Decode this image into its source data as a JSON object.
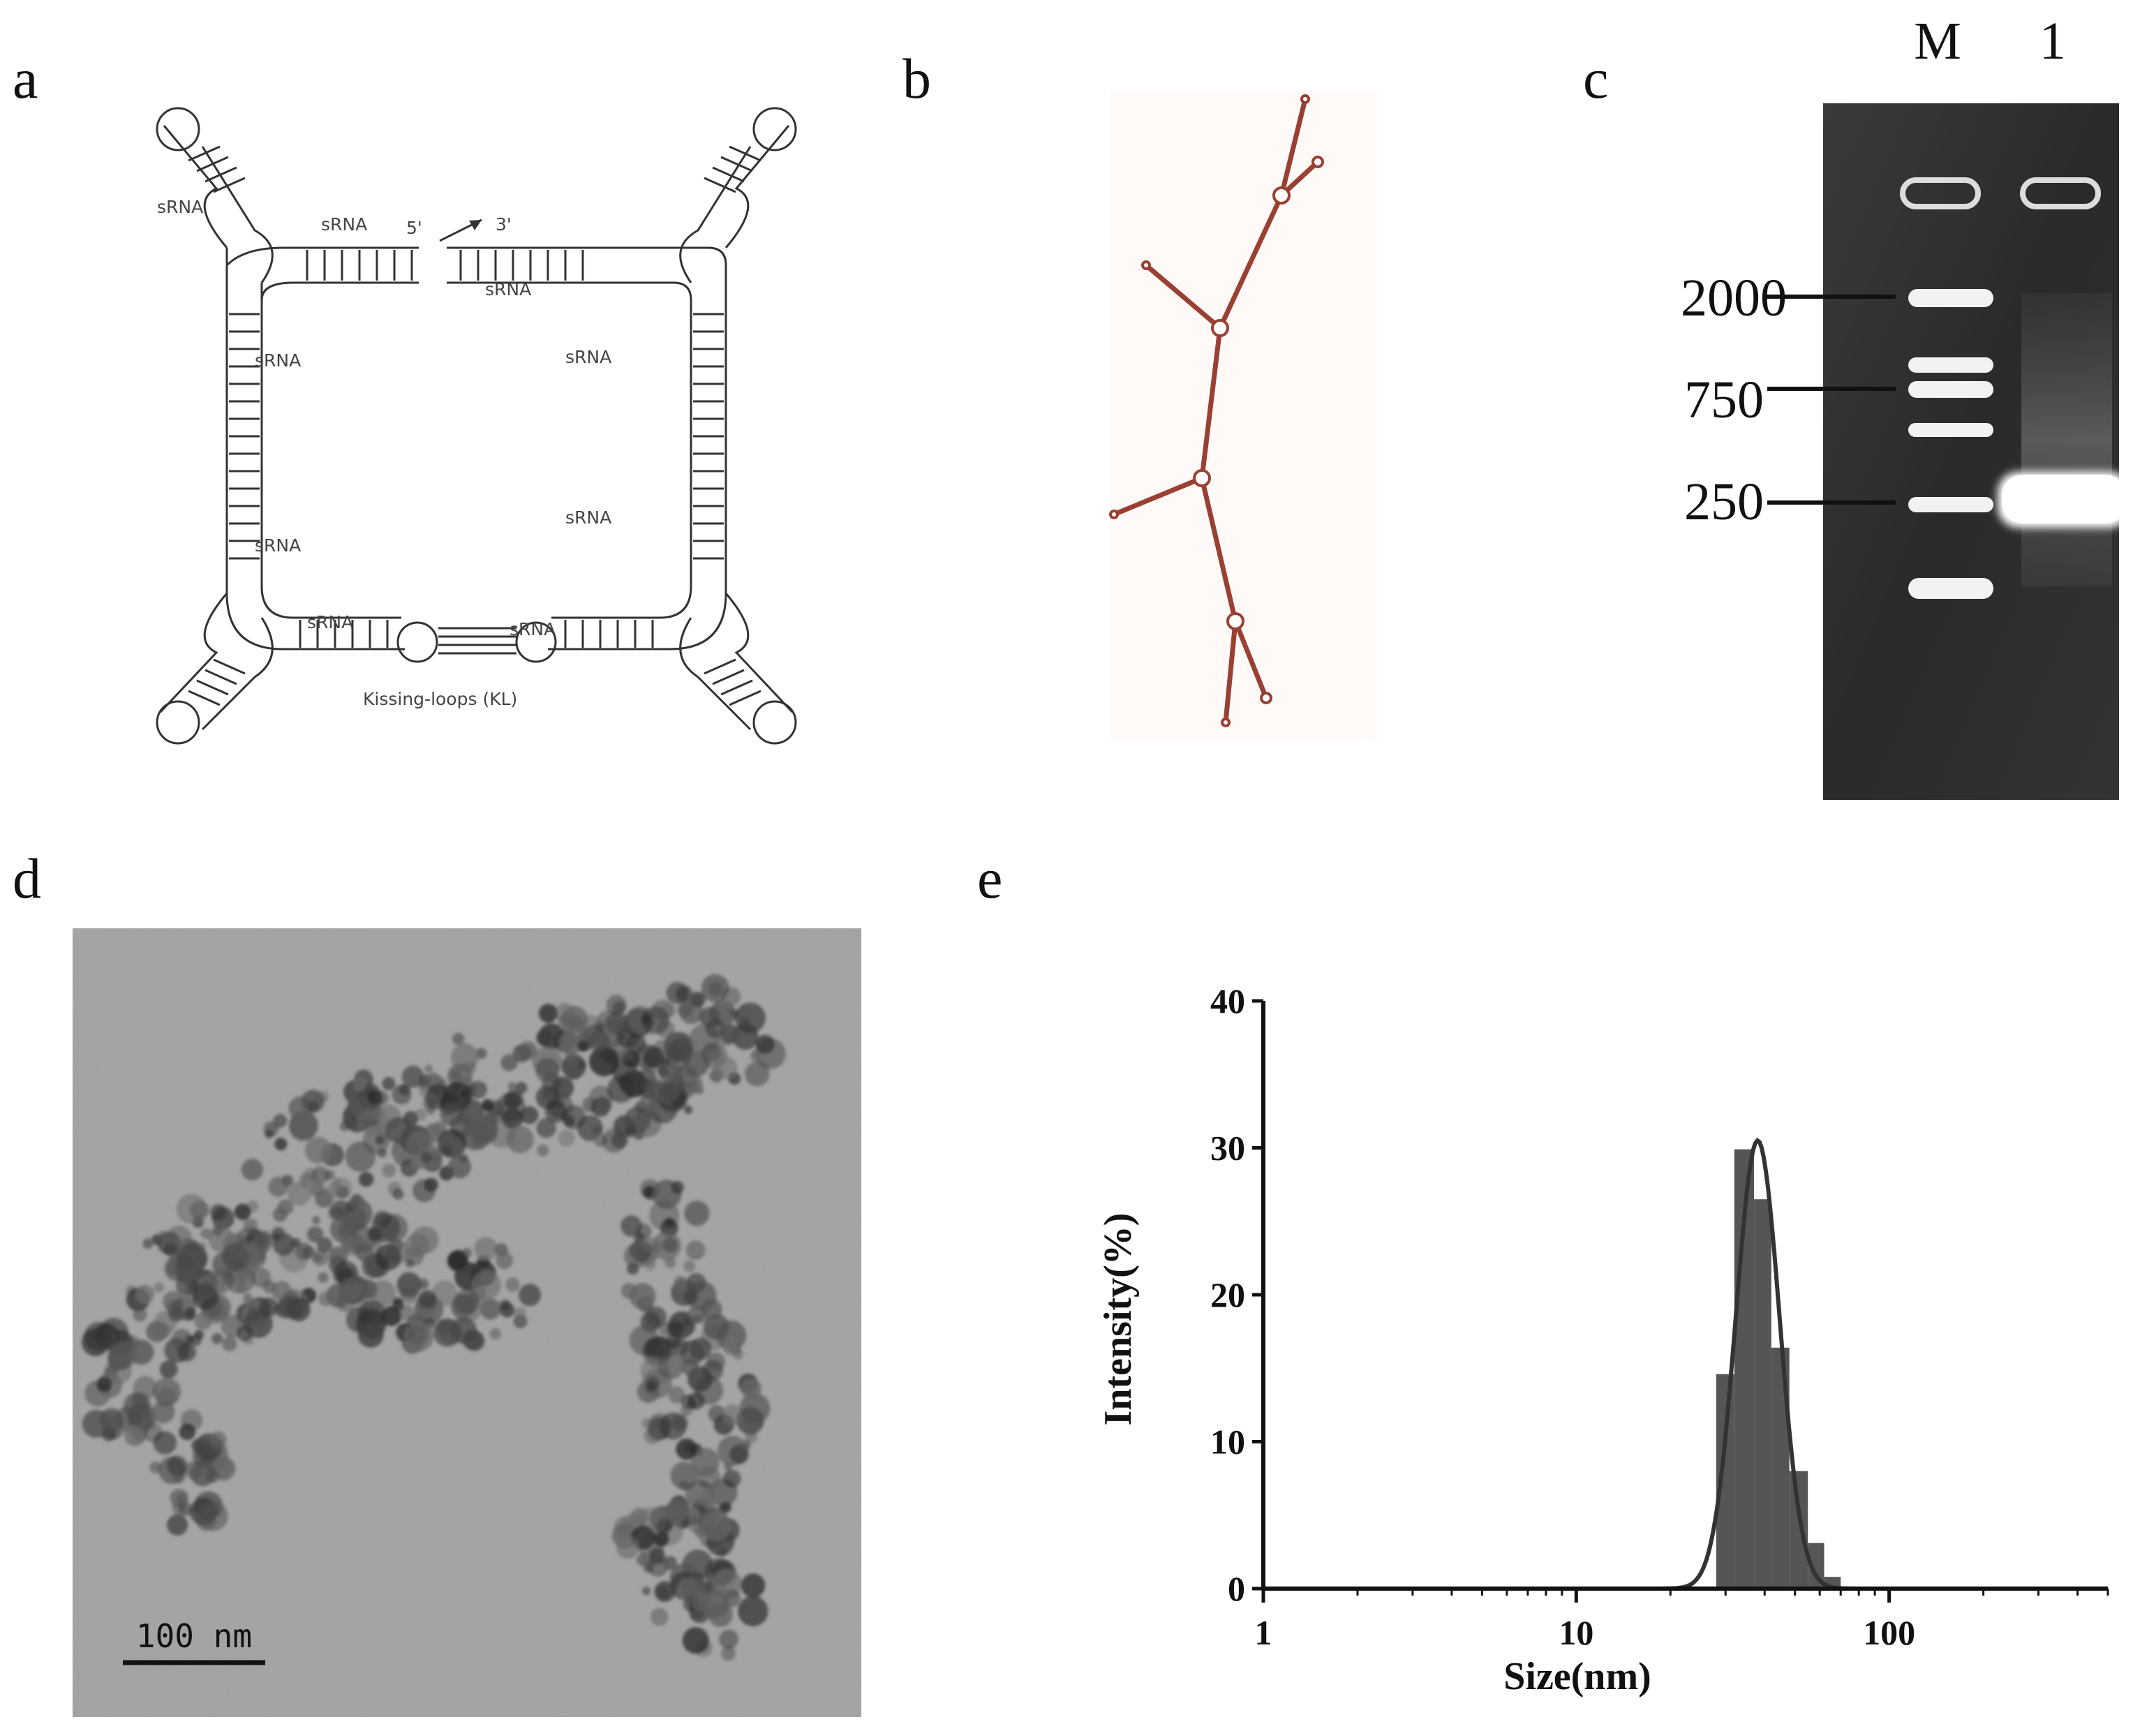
{
  "panels": {
    "a": "a",
    "b": "b",
    "c": "c",
    "d": "d",
    "e": "e"
  },
  "panel_a": {
    "srna_label": "sRNA",
    "five_prime": "5'",
    "three_prime": "3'",
    "kissing_loops": "Kissing-loops (KL)"
  },
  "panel_c": {
    "lane_marker": "M",
    "lane_sample": "1",
    "markers": [
      "2000",
      "750",
      "250"
    ]
  },
  "panel_d": {
    "scale_bar": "100 nm"
  },
  "chart_data": {
    "type": "bar",
    "xlabel": "Size(nm)",
    "ylabel": "Intensity(%)",
    "x_scale": "log",
    "xlim": [
      1,
      500
    ],
    "ylim": [
      0,
      40
    ],
    "x_ticks": [
      "1",
      "10",
      "100"
    ],
    "y_ticks": [
      "0",
      "10",
      "20",
      "30",
      "40"
    ],
    "bins": [
      {
        "x0": 28,
        "x1": 32,
        "value": 14.6
      },
      {
        "x0": 32,
        "x1": 37,
        "value": 29.9
      },
      {
        "x0": 37,
        "x1": 42,
        "value": 26.5
      },
      {
        "x0": 42,
        "x1": 48,
        "value": 16.4
      },
      {
        "x0": 48,
        "x1": 55,
        "value": 8.0
      },
      {
        "x0": 55,
        "x1": 62,
        "value": 3.1
      },
      {
        "x0": 62,
        "x1": 70,
        "value": 0.8
      }
    ],
    "fit_curve": {
      "type": "lognormal",
      "peak_x": 38,
      "peak_y": 30.5
    },
    "colors": {
      "bars": "#555555",
      "curve": "#333333"
    }
  }
}
